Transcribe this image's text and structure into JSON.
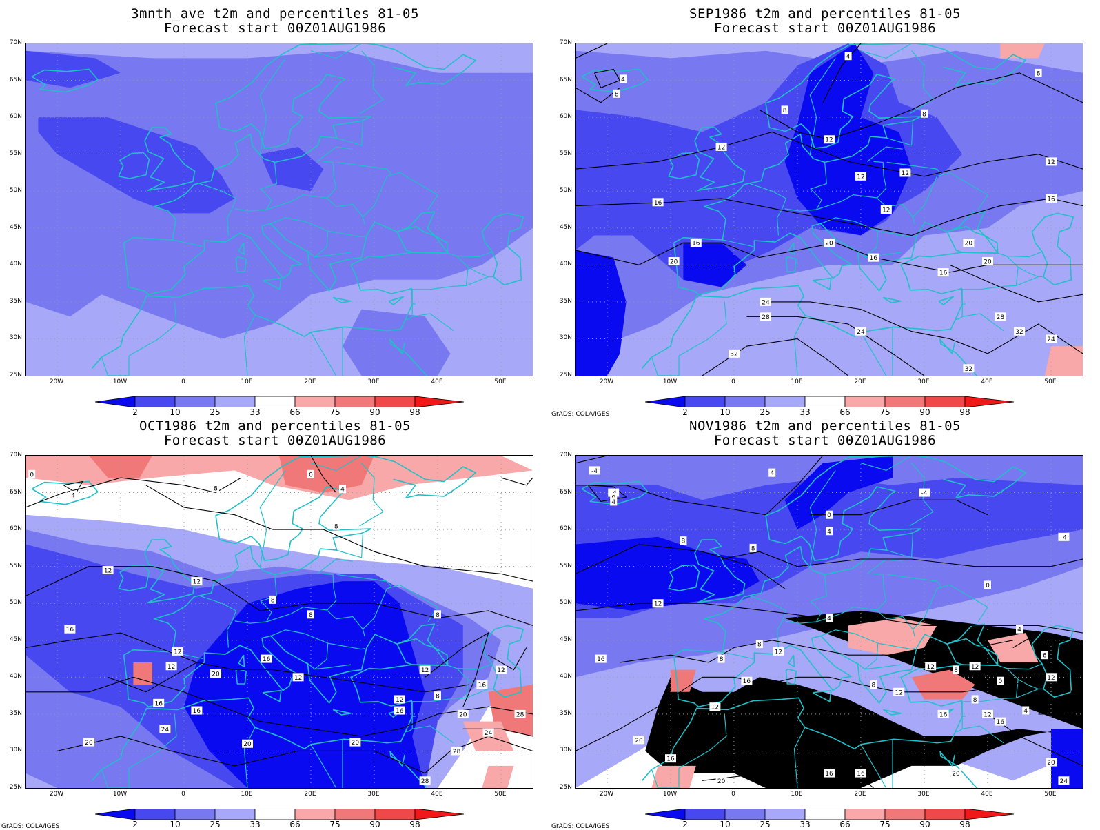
{
  "panels": [
    {
      "title_line1": "3mnth_ave t2m and percentiles 81-05",
      "title_line2": "Forecast start 00Z01AUG1986",
      "show_credit": false,
      "contour_labels": []
    },
    {
      "title_line1": "SEP1986 t2m and percentiles 81-05",
      "title_line2": "Forecast start 00Z01AUG1986",
      "show_credit": true,
      "contour_labels": [
        "4",
        "8",
        "12",
        "16",
        "20",
        "24",
        "28",
        "32"
      ]
    },
    {
      "title_line1": "OCT1986 t2m and percentiles 81-05",
      "title_line2": "Forecast start 00Z01AUG1986",
      "show_credit": true,
      "contour_labels": [
        "0",
        "4",
        "8",
        "12",
        "16",
        "20",
        "24",
        "28"
      ]
    },
    {
      "title_line1": "NOV1986 t2m and percentiles 81-05",
      "title_line2": "Forecast start 00Z01AUG1986",
      "show_credit": true,
      "contour_labels": [
        "-4",
        "0",
        "4",
        "8",
        "12",
        "16",
        "20",
        "24"
      ]
    }
  ],
  "lat_labels": [
    "70N",
    "65N",
    "60N",
    "55N",
    "50N",
    "45N",
    "40N",
    "35N",
    "30N",
    "25N"
  ],
  "lon_labels": [
    "20W",
    "10W",
    "0",
    "10E",
    "20E",
    "30E",
    "40E",
    "50E"
  ],
  "colorbar_labels": [
    "2",
    "10",
    "25",
    "33",
    "66",
    "75",
    "90",
    "98"
  ],
  "credit": "GrADS: COLA/IGES",
  "colors": {
    "coastline": "#20c0c8",
    "blue_dark": "#0a0af0",
    "blue_mid": "#4848f0",
    "blue_light": "#7878f0",
    "blue_pale": "#a8a8f8",
    "red_pale": "#f8a8a8",
    "red_light": "#f07878",
    "red_mid": "#f04848",
    "red_dark": "#f01818"
  }
}
